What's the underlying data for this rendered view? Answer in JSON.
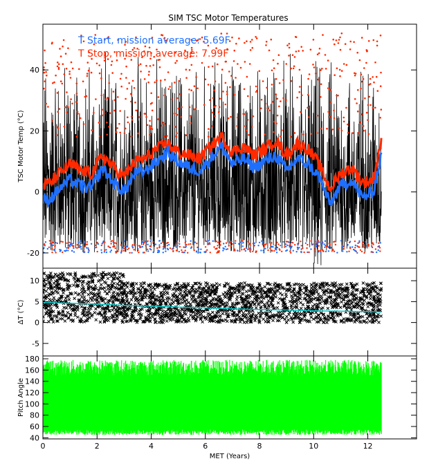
{
  "title": "SIM TSC Motor Temperatures",
  "colors": {
    "start": "#1f6fff",
    "stop": "#ff2a00",
    "raw": "#000000",
    "trend": "#00c8c8",
    "pitch": "#00ff00"
  },
  "legend": {
    "start_label": "T Start, mission average: 5.69F",
    "stop_label": "T Stop, mission average: 7.99F"
  },
  "chart_data": [
    {
      "type": "line",
      "ylabel": "TSC Motor Temp (°C)",
      "xlim": [
        0,
        13.8
      ],
      "ylim": [
        -25,
        55
      ],
      "yticks": [
        -20,
        0,
        20,
        40
      ],
      "series": [
        {
          "name": "T Start, mission average: 5.69F",
          "color": "#1f6fff",
          "x": [
            0,
            0.3,
            0.6,
            1.0,
            1.4,
            1.8,
            2.2,
            2.6,
            3.0,
            3.4,
            3.8,
            4.2,
            4.6,
            5.0,
            5.4,
            5.8,
            6.2,
            6.6,
            7.0,
            7.4,
            7.8,
            8.2,
            8.6,
            9.0,
            9.4,
            9.8,
            10.2,
            10.6,
            11.0,
            11.4,
            11.8,
            12.2,
            12.5
          ],
          "y": [
            -3,
            -2,
            1,
            4,
            2,
            1,
            8,
            3,
            0,
            6,
            7,
            10,
            13,
            10,
            8,
            7,
            11,
            15,
            9,
            11,
            8,
            10,
            12,
            7,
            11,
            9,
            5,
            -4,
            2,
            4,
            -2,
            0,
            12
          ]
        },
        {
          "name": "T Stop, mission average: 7.99F",
          "color": "#ff2a00",
          "x": [
            0,
            0.3,
            0.6,
            1.0,
            1.4,
            1.8,
            2.2,
            2.6,
            3.0,
            3.4,
            3.8,
            4.2,
            4.6,
            5.0,
            5.4,
            5.8,
            6.2,
            6.6,
            7.0,
            7.4,
            7.8,
            8.2,
            8.6,
            9.0,
            9.4,
            9.8,
            10.2,
            10.6,
            11.0,
            11.4,
            11.8,
            12.2,
            12.5
          ],
          "y": [
            2,
            3,
            6,
            9,
            7,
            6,
            12,
            8,
            5,
            10,
            11,
            14,
            16,
            13,
            12,
            11,
            15,
            18,
            13,
            15,
            12,
            14,
            17,
            12,
            16,
            14,
            9,
            1,
            6,
            8,
            3,
            4,
            17
          ]
        }
      ]
    },
    {
      "type": "scatter",
      "ylabel": "ΔT (°C)",
      "xlim": [
        0,
        13.8
      ],
      "ylim": [
        -8,
        13
      ],
      "yticks": [
        -5,
        0,
        5,
        10
      ],
      "series": [
        {
          "color": "#000000",
          "x_range": [
            0,
            12.5
          ],
          "y_range": [
            0,
            12
          ]
        },
        {
          "color": "#00c8c8",
          "x": [
            0,
            1,
            2,
            3,
            4,
            5,
            6,
            7,
            8,
            9,
            10,
            11,
            12,
            12.5
          ],
          "y": [
            4.8,
            4.6,
            4.4,
            4.1,
            3.9,
            3.7,
            3.5,
            3.3,
            3.1,
            3.0,
            2.8,
            2.7,
            2.6,
            2.5
          ]
        }
      ]
    },
    {
      "type": "bar",
      "ylabel": "Pitch Angle",
      "xlabel": "MET (Years)",
      "xlim": [
        0,
        13.8
      ],
      "ylim": [
        38,
        185
      ],
      "yticks": [
        40,
        60,
        80,
        100,
        120,
        140,
        160,
        180
      ],
      "xticks": [
        0,
        2,
        4,
        6,
        8,
        10,
        12
      ],
      "series": [
        {
          "color": "#00ff00",
          "x_range": [
            0,
            12.5
          ],
          "y_range": [
            45,
            178
          ]
        }
      ]
    }
  ]
}
